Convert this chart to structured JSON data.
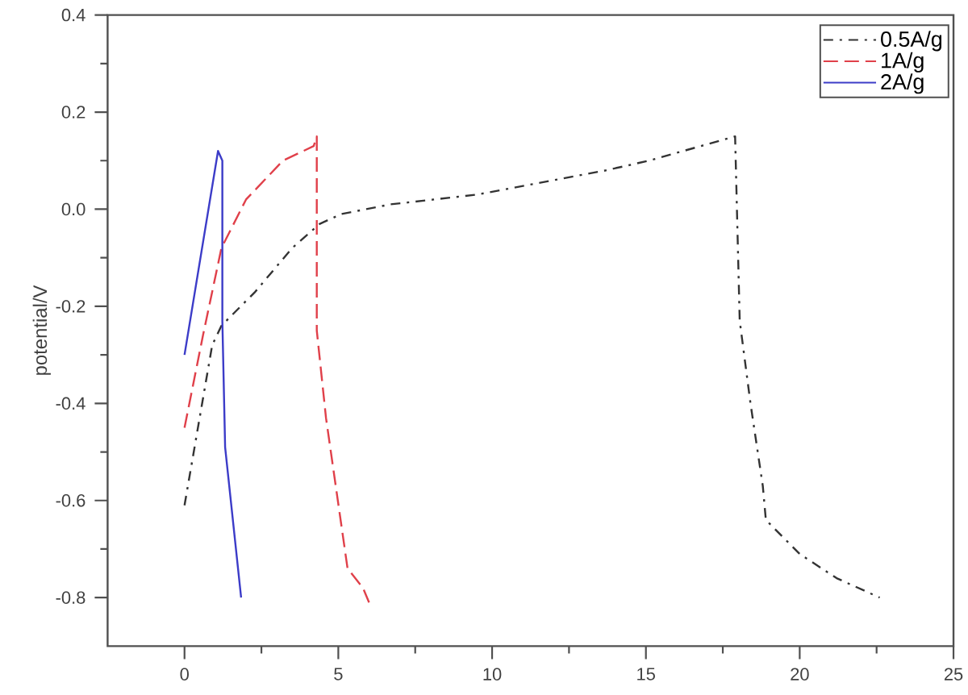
{
  "chart_data": {
    "type": "line",
    "ylabel": "potential/V",
    "xlim": [
      -2.5,
      25
    ],
    "ylim": [
      -0.9,
      0.4
    ],
    "xticks": [
      0,
      5,
      10,
      15,
      20,
      25
    ],
    "yticks": [
      -0.8,
      -0.6,
      -0.4,
      -0.2,
      {
        "value": 0,
        "label": "0.0"
      },
      0.2,
      0.4
    ],
    "legend": "top right",
    "series": [
      {
        "name": "0.5A/g",
        "color": "#333333",
        "line_style": "dashdot",
        "x": [
          0,
          0.9,
          1.2,
          2.3,
          3.5,
          4.4,
          5.1,
          6.7,
          9.5,
          13.7,
          15.1,
          17.9,
          18.05,
          18.4,
          18.8,
          18.9,
          20.0,
          21.2,
          22.6
        ],
        "values": [
          -0.61,
          -0.28,
          -0.24,
          -0.17,
          -0.08,
          -0.03,
          -0.01,
          0.01,
          0.03,
          0.08,
          0.1,
          0.15,
          -0.23,
          -0.4,
          -0.57,
          -0.64,
          -0.71,
          -0.76,
          -0.8
        ]
      },
      {
        "name": "1A/g",
        "color": "#e0404a",
        "line_style": "dashed",
        "x": [
          0,
          0.6,
          1.2,
          2.0,
          3.2,
          4.2,
          4.3,
          4.3,
          4.6,
          5.3,
          5.8,
          6.0
        ],
        "values": [
          -0.45,
          -0.26,
          -0.08,
          0.02,
          0.1,
          0.13,
          0.15,
          -0.25,
          -0.43,
          -0.74,
          -0.78,
          -0.81
        ]
      },
      {
        "name": "2A/g",
        "color": "#3c3cc8",
        "line_style": "solid",
        "x": [
          0,
          1.09,
          1.23,
          1.23,
          1.32,
          1.84
        ],
        "values": [
          -0.3,
          0.12,
          0.1,
          -0.23,
          -0.49,
          -0.8
        ]
      }
    ]
  }
}
